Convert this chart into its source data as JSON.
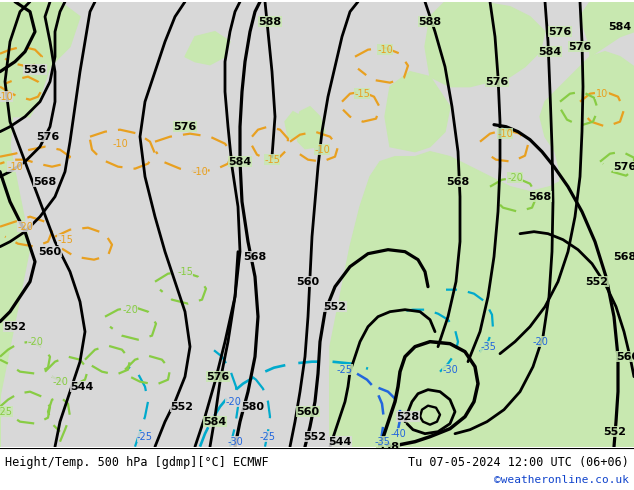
{
  "title_left": "Height/Temp. 500 hPa [gdmp][°C] ECMWF",
  "title_right": "Tu 07-05-2024 12:00 UTC (06+06)",
  "watermark": "©weatheronline.co.uk",
  "bg_ocean": "#d8d8d8",
  "bg_land": "#c8e8b0",
  "bg_land_dark": "#b8d8a0",
  "color_coast": "#888888",
  "color_geo": "#000000",
  "color_temp_orange": "#e8a020",
  "color_temp_cyan": "#00aacc",
  "color_temp_blue": "#2266dd",
  "color_temp_green": "#88cc44",
  "color_title": "#000000",
  "color_watermark": "#1144cc",
  "fig_w": 6.34,
  "fig_h": 4.9,
  "dpi": 100
}
